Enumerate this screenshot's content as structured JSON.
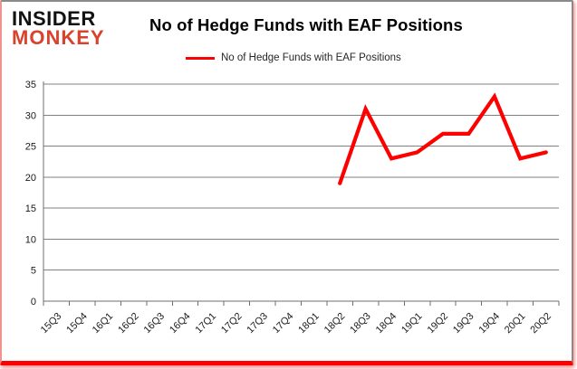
{
  "brand": {
    "line1": "INSIDER",
    "line2": "MONKEY",
    "accent_color": "#d9422c"
  },
  "header": {
    "title": "No of Hedge Funds with EAF Positions"
  },
  "legend": {
    "label": "No of Hedge Funds with EAF Positions"
  },
  "chart_data": {
    "type": "line",
    "title": "No of Hedge Funds with EAF Positions",
    "categories": [
      "15Q3",
      "15Q4",
      "16Q1",
      "16Q2",
      "16Q3",
      "16Q4",
      "17Q1",
      "17Q2",
      "17Q3",
      "17Q4",
      "18Q1",
      "18Q2",
      "18Q3",
      "18Q4",
      "19Q1",
      "19Q2",
      "19Q3",
      "19Q4",
      "20Q1",
      "20Q2"
    ],
    "series": [
      {
        "name": "No of Hedge Funds with EAF Positions",
        "color": "#fe0000",
        "values": [
          null,
          null,
          null,
          null,
          null,
          null,
          null,
          null,
          null,
          null,
          null,
          19,
          31,
          23,
          24,
          27,
          27,
          33,
          23,
          24
        ]
      }
    ],
    "xlabel": "",
    "ylabel": "",
    "ylim": [
      0,
      35
    ],
    "yticks": [
      0,
      5,
      10,
      15,
      20,
      25,
      30,
      35
    ],
    "grid": "horizontal",
    "legend_position": "top"
  },
  "style": {
    "line_color": "#fe0000",
    "grid_color": "#808080",
    "axis_color": "#6f6f6f",
    "tick_text_color": "#1a1a1a",
    "border_red": "#fe0000",
    "border_gray": "#8a8a8a"
  }
}
